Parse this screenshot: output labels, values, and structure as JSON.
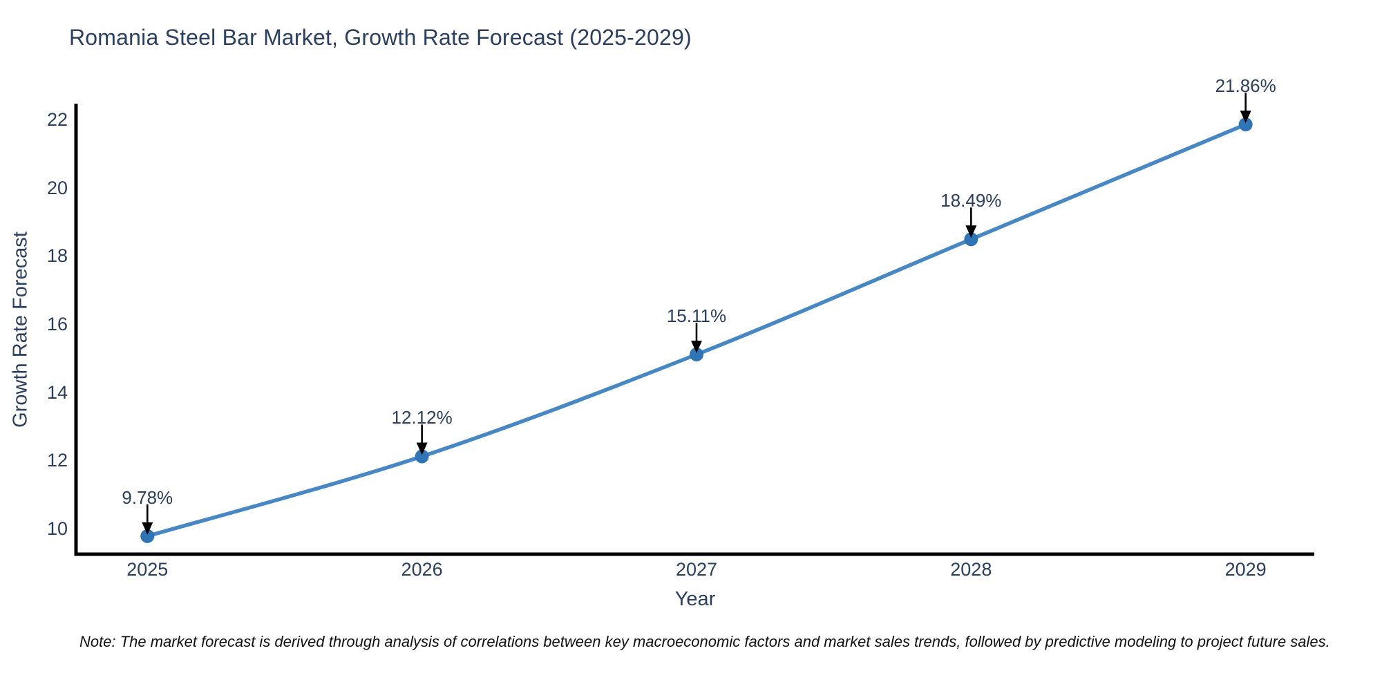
{
  "header": {
    "title": "Romania Steel Bar Market, Growth Rate Forecast (2025-2029)"
  },
  "footnote": "Note: The market forecast is derived through analysis of correlations between key macroeconomic factors and market sales trends, followed by predictive modeling to project future sales.",
  "chart_data": {
    "type": "line",
    "title": "Romania Steel Bar Market, Growth Rate Forecast (2025-2029)",
    "xlabel": "Year",
    "ylabel": "Growth Rate Forecast",
    "x": [
      2025,
      2026,
      2027,
      2028,
      2029
    ],
    "series": [
      {
        "name": "Growth Rate Forecast",
        "values": [
          9.78,
          12.12,
          15.11,
          18.49,
          21.86
        ]
      }
    ],
    "point_labels": [
      "9.78%",
      "12.12%",
      "15.11%",
      "18.49%",
      "21.86%"
    ],
    "y_ticks": [
      10,
      12,
      14,
      16,
      18,
      20,
      22
    ],
    "ylim": [
      9.25,
      22.47
    ],
    "xlim": [
      2024.74,
      2029.25
    ],
    "grid": false,
    "legend": "none",
    "annotations_have_arrows": true,
    "colors": {
      "line": "#4788c4",
      "marker": "#2f74b4",
      "axis_line": "#000000",
      "text": "#2a3f5f",
      "annotation_text": "#2a3f5f",
      "arrow": "#000000",
      "background": "#ffffff"
    }
  }
}
